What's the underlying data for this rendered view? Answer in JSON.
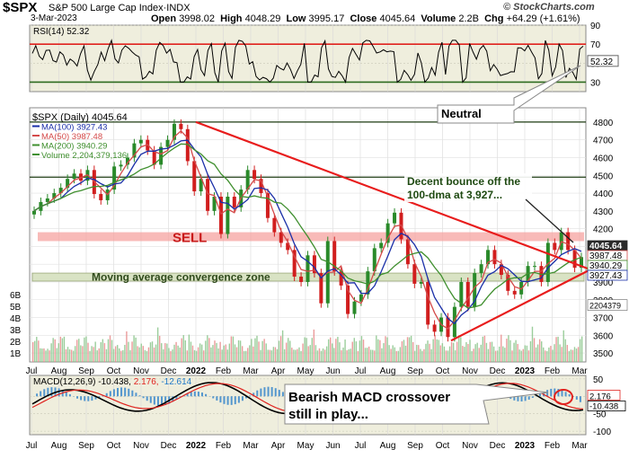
{
  "header": {
    "ticker": "$SPX",
    "name": "S&P 500 Large Cap Index",
    "exchange": "INDX",
    "date": "3-Mar-2023",
    "quote": {
      "open_label": "Open",
      "open": "3998.02",
      "high_label": "High",
      "high": "4048.29",
      "low_label": "Low",
      "low": "3995.17",
      "close_label": "Close",
      "close": "4045.64",
      "volume_label": "Volume",
      "volume": "2.2B",
      "chg_label": "Chg",
      "chg": "+64.29 (+1.61%)"
    },
    "credit": "© StockCharts.com"
  },
  "chart_data": [
    {
      "type": "line",
      "panel": "rsi",
      "label": "RSI(14) 52.32",
      "value": 52.32,
      "value_label": "52.32",
      "ylim": [
        20,
        90
      ],
      "yticks": [
        30,
        50,
        70,
        90
      ],
      "reference_lines": [
        70,
        30
      ],
      "annotation": "Neutral",
      "colors": {
        "line": "#000000",
        "ref70": "#e0221e",
        "ref30": "#2e6b1f",
        "panel_bg": "#efeedd"
      }
    },
    {
      "type": "candlestick",
      "panel": "price",
      "x": [
        "Jul",
        "Aug",
        "Sep",
        "Oct",
        "Nov",
        "Dec",
        "2022",
        "Feb",
        "Mar",
        "Apr",
        "May",
        "Jun",
        "Jul",
        "Aug",
        "Sep",
        "Oct",
        "Nov",
        "Dec",
        "2023",
        "Feb",
        "Mar"
      ],
      "ylim": [
        3450,
        4850
      ],
      "yticks": [
        3500,
        3600,
        3700,
        3800,
        3900,
        4000,
        4100,
        4200,
        4300,
        4400,
        4500,
        4600,
        4700,
        4800
      ],
      "legend": {
        "price": "$SPX (Daily) 4045.64",
        "ma100": "MA(100) 3927.43",
        "ma50": "MA(50) 3987.48",
        "ma200": "MA(200) 3940.29",
        "volume": "Volume 2,204,379,136"
      },
      "closes": [
        4300,
        4350,
        4370,
        4400,
        4430,
        4480,
        4510,
        4470,
        4530,
        4395,
        4360,
        4420,
        4550,
        4560,
        4600,
        4680,
        4700,
        4640,
        4560,
        4660,
        4700,
        4790,
        4760,
        4580,
        4410,
        4480,
        4300,
        4380,
        4170,
        4380,
        4320,
        4420,
        4530,
        4480,
        4400,
        4260,
        4180,
        4120,
        4080,
        3930,
        3900,
        4050,
        3950,
        3780,
        4130,
        3960,
        3880,
        3720,
        3790,
        3830,
        3960,
        4090,
        4120,
        4230,
        4290,
        4140,
        4000,
        3890,
        3900,
        3660,
        3620,
        3700,
        3590,
        3760,
        3900,
        3760,
        3950,
        4000,
        4080,
        4000,
        3940,
        3850,
        3830,
        3900,
        3990,
        3990,
        3900,
        4120,
        4080,
        4180,
        4080,
        3980,
        4040
      ],
      "volume_scale": [
        "1B",
        "2B",
        "3B",
        "4B",
        "5B",
        "6B"
      ],
      "volume_last": "2204379",
      "levels": {
        "sell_zone": [
          4130,
          4180
        ],
        "sell_label": "SELL",
        "ma_zone": [
          3905,
          3950
        ],
        "ma_zone_label": "Moving average convergence zone",
        "horizontal_lines": [
          4800,
          4490
        ]
      },
      "triangle": {
        "top": 4800,
        "bottom": 3570,
        "apex": 3970
      },
      "annotation": "Decent bounce off the 100-dma at 3,927...",
      "price_labels": [
        "4045.64",
        "3987.48",
        "3940.29",
        "3927.43"
      ],
      "colors": {
        "up": "#2a8a2a",
        "down": "#d11e1e",
        "ma100": "#1a2fa8",
        "ma50": "#d44a4a",
        "ma200": "#3f8f2e",
        "sell_zone": "#f5a3a0",
        "ma_zone": "#d9e3c4",
        "triangle": "#e81c1c",
        "last_price_bg": "#2a2a2a"
      }
    },
    {
      "type": "line",
      "panel": "macd",
      "label": "MACD(12,26,9) -10.438, 2.176, -12.614",
      "label_parts": {
        "name": "MACD(12,26,9)",
        "macd": "-10.438",
        "signal": "2.176",
        "histogram": "-12.614"
      },
      "ylim": [
        -110,
        60
      ],
      "yticks": [
        50,
        0,
        -50,
        -100
      ],
      "value_labels": [
        "2.176",
        "-10.438"
      ],
      "annotation": "Bearish MACD crossover still in play...",
      "colors": {
        "macd": "#000000",
        "signal": "#e0221e",
        "histogram": "#1f78c8",
        "panel_bg": "#efeedd"
      }
    }
  ],
  "x_axis": {
    "labels": [
      "Jul",
      "Aug",
      "Sep",
      "Oct",
      "Nov",
      "Dec",
      "2022",
      "Feb",
      "Mar",
      "Apr",
      "May",
      "Jun",
      "Jul",
      "Aug",
      "Sep",
      "Oct",
      "Nov",
      "Dec",
      "2023",
      "Feb",
      "Mar"
    ],
    "bold_labels": [
      "2022",
      "2023"
    ]
  }
}
